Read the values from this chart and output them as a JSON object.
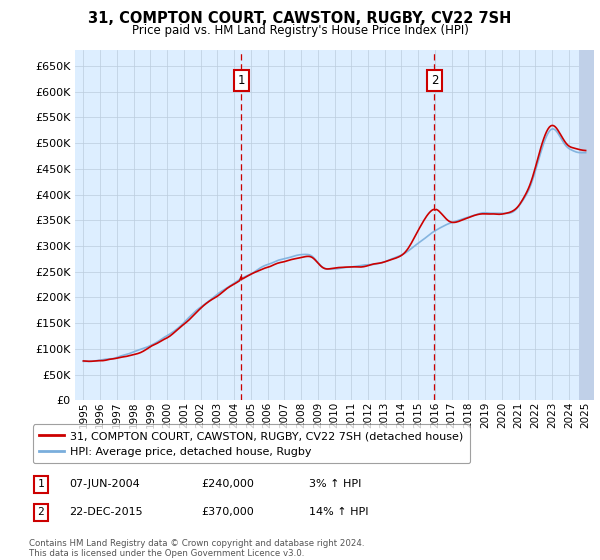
{
  "title": "31, COMPTON COURT, CAWSTON, RUGBY, CV22 7SH",
  "subtitle": "Price paid vs. HM Land Registry's House Price Index (HPI)",
  "ylim": [
    0,
    680000
  ],
  "yticks": [
    0,
    50000,
    100000,
    150000,
    200000,
    250000,
    300000,
    350000,
    400000,
    450000,
    500000,
    550000,
    600000,
    650000
  ],
  "xlim_start": 1994.5,
  "xlim_end": 2025.5,
  "sale1_date": 2004.44,
  "sale1_price": 240000,
  "sale1_label": "07-JUN-2004",
  "sale1_pct": "3%",
  "sale2_date": 2015.97,
  "sale2_price": 370000,
  "sale2_label": "22-DEC-2015",
  "sale2_pct": "14%",
  "legend_line1": "31, COMPTON COURT, CAWSTON, RUGBY, CV22 7SH (detached house)",
  "legend_line2": "HPI: Average price, detached house, Rugby",
  "footnote": "Contains HM Land Registry data © Crown copyright and database right 2024.\nThis data is licensed under the Open Government Licence v3.0.",
  "line_color_red": "#cc0000",
  "line_color_blue": "#7aaedc",
  "bg_color": "#ddeeff",
  "grid_color": "#bbccdd",
  "annotation_box_color": "#cc0000",
  "hatch_color": "#c0d0e8"
}
